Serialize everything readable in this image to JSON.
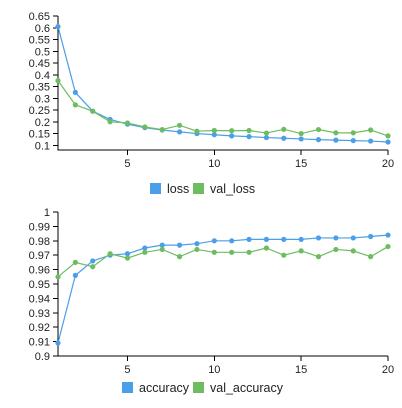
{
  "chart_data": [
    {
      "type": "line",
      "x": [
        1,
        2,
        3,
        4,
        5,
        6,
        7,
        8,
        9,
        10,
        11,
        12,
        13,
        14,
        15,
        16,
        17,
        18,
        19,
        20
      ],
      "xlim": [
        1,
        20
      ],
      "ylim": [
        0.08,
        0.65
      ],
      "x_ticks": [
        5,
        10,
        15,
        20
      ],
      "x_tick_labels": [
        "5",
        "10",
        "15",
        "20"
      ],
      "y_ticks": [
        0.1,
        0.15,
        0.2,
        0.25,
        0.3,
        0.35,
        0.4,
        0.45,
        0.5,
        0.55,
        0.6,
        0.65
      ],
      "y_tick_labels": [
        "0.1",
        "0.15",
        "0.2",
        "0.25",
        "0.3",
        "0.35",
        "0.4",
        "0.45",
        "0.5",
        "0.55",
        "0.6",
        "0.65"
      ],
      "grid": false,
      "legend_position": "bottom-center",
      "series": [
        {
          "name": "loss",
          "color": "#4a9fe8",
          "values": [
            0.605,
            0.325,
            0.245,
            0.21,
            0.19,
            0.175,
            0.165,
            0.157,
            0.15,
            0.145,
            0.14,
            0.137,
            0.133,
            0.13,
            0.127,
            0.124,
            0.122,
            0.12,
            0.118,
            0.114
          ]
        },
        {
          "name": "val_loss",
          "color": "#6dbd60",
          "values": [
            0.375,
            0.272,
            0.245,
            0.2,
            0.195,
            0.178,
            0.167,
            0.185,
            0.16,
            0.163,
            0.162,
            0.163,
            0.152,
            0.168,
            0.15,
            0.167,
            0.153,
            0.153,
            0.165,
            0.14
          ]
        }
      ]
    },
    {
      "type": "line",
      "x": [
        1,
        2,
        3,
        4,
        5,
        6,
        7,
        8,
        9,
        10,
        11,
        12,
        13,
        14,
        15,
        16,
        17,
        18,
        19,
        20
      ],
      "xlim": [
        1,
        20
      ],
      "ylim": [
        0.9,
        1.0
      ],
      "x_ticks": [
        5,
        10,
        15,
        20
      ],
      "x_tick_labels": [
        "5",
        "10",
        "15",
        "20"
      ],
      "y_ticks": [
        0.9,
        0.91,
        0.92,
        0.93,
        0.94,
        0.95,
        0.96,
        0.97,
        0.98,
        0.99,
        1.0
      ],
      "y_tick_labels": [
        "0.9",
        "0.91",
        "0.92",
        "0.93",
        "0.94",
        "0.95",
        "0.96",
        "0.97",
        "0.98",
        "0.99",
        "1"
      ],
      "grid": false,
      "legend_position": "bottom-center",
      "series": [
        {
          "name": "accuracy",
          "color": "#4a9fe8",
          "values": [
            0.909,
            0.956,
            0.966,
            0.97,
            0.971,
            0.975,
            0.977,
            0.977,
            0.978,
            0.98,
            0.98,
            0.981,
            0.981,
            0.981,
            0.981,
            0.982,
            0.982,
            0.982,
            0.983,
            0.984
          ]
        },
        {
          "name": "val_accuracy",
          "color": "#6dbd60",
          "values": [
            0.955,
            0.965,
            0.962,
            0.971,
            0.968,
            0.972,
            0.974,
            0.969,
            0.974,
            0.972,
            0.972,
            0.972,
            0.975,
            0.97,
            0.973,
            0.969,
            0.974,
            0.973,
            0.969,
            0.976
          ]
        }
      ]
    }
  ]
}
